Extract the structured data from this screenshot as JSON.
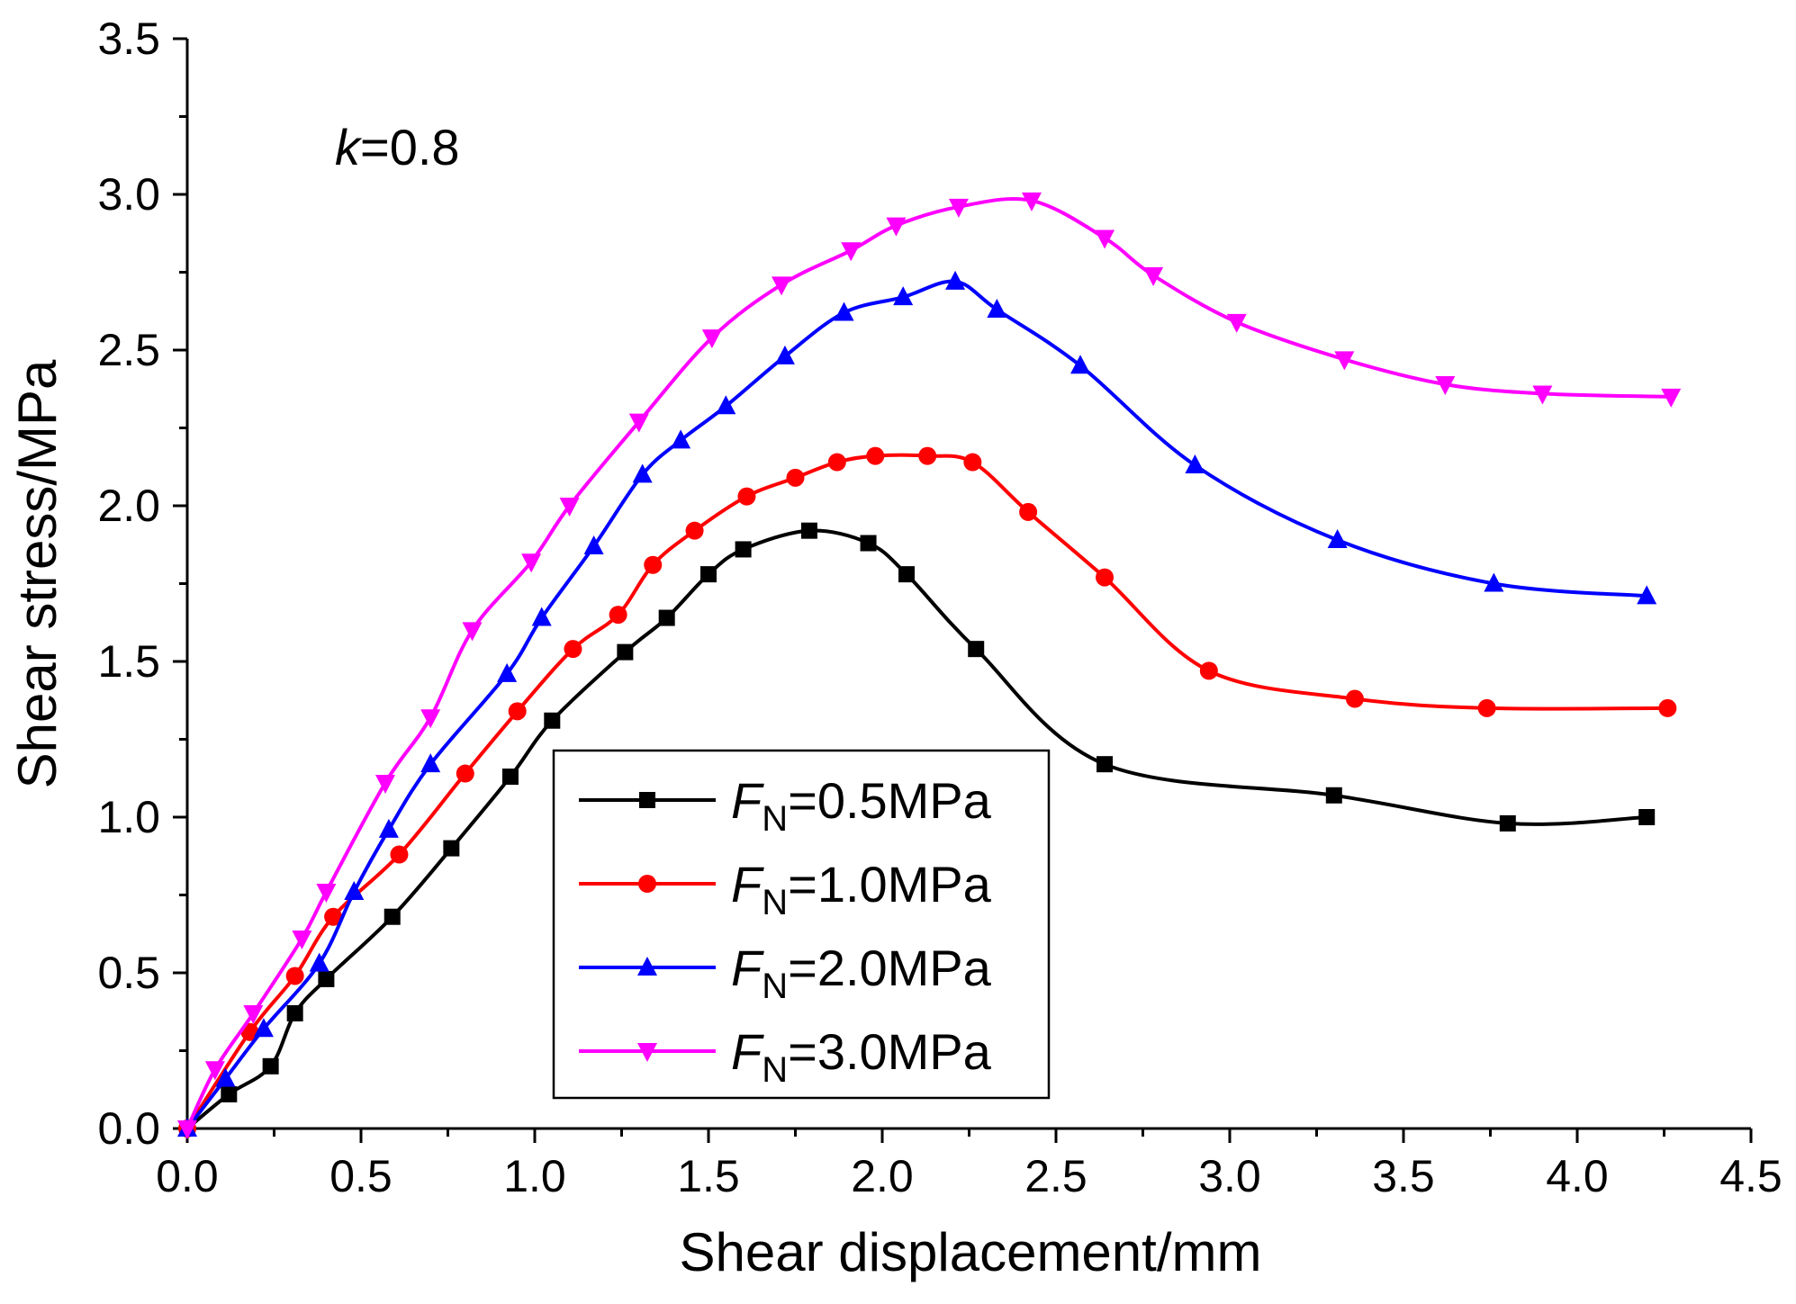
{
  "chart_data": {
    "type": "line",
    "title": "",
    "xlabel": "Shear displacement/mm",
    "ylabel": "Shear stress/MPa",
    "xlim": [
      0,
      4.5
    ],
    "ylim": [
      0,
      3.5
    ],
    "xticks": [
      "0.0",
      "0.5",
      "1.0",
      "1.5",
      "2.0",
      "2.5",
      "3.0",
      "3.5",
      "4.0",
      "4.5"
    ],
    "yticks": [
      "0.0",
      "0.5",
      "1.0",
      "1.5",
      "2.0",
      "2.5",
      "3.0",
      "3.5"
    ],
    "annotation": {
      "var": "k",
      "text": "=0.8"
    },
    "legend_position": "bottom-center",
    "series": [
      {
        "name": "F_N=0.5MPa",
        "label_var": "F",
        "label_sub": "N",
        "label_rest": "=0.5MPa",
        "color": "#000000",
        "marker": "square",
        "x": [
          0.0,
          0.12,
          0.24,
          0.31,
          0.4,
          0.59,
          0.76,
          0.93,
          1.05,
          1.26,
          1.38,
          1.5,
          1.6,
          1.79,
          1.96,
          2.07,
          2.27,
          2.64,
          3.3,
          3.8,
          4.2
        ],
        "y": [
          0.0,
          0.11,
          0.2,
          0.37,
          0.48,
          0.68,
          0.9,
          1.13,
          1.31,
          1.53,
          1.64,
          1.78,
          1.86,
          1.92,
          1.88,
          1.78,
          1.54,
          1.17,
          1.07,
          0.98,
          1.0
        ]
      },
      {
        "name": "F_N=1.0MPa",
        "label_var": "F",
        "label_sub": "N",
        "label_rest": "=1.0MPa",
        "color": "#ff0000",
        "marker": "circle",
        "x": [
          0.0,
          0.18,
          0.31,
          0.42,
          0.61,
          0.8,
          0.95,
          1.11,
          1.24,
          1.34,
          1.46,
          1.61,
          1.75,
          1.87,
          1.98,
          2.13,
          2.26,
          2.42,
          2.64,
          2.94,
          3.36,
          3.74,
          4.26
        ],
        "y": [
          0.0,
          0.31,
          0.49,
          0.68,
          0.88,
          1.14,
          1.34,
          1.54,
          1.65,
          1.81,
          1.92,
          2.03,
          2.09,
          2.14,
          2.16,
          2.16,
          2.14,
          1.98,
          1.77,
          1.47,
          1.38,
          1.35,
          1.35
        ]
      },
      {
        "name": "F_N=2.0MPa",
        "label_var": "F",
        "label_sub": "N",
        "label_rest": "=2.0MPa",
        "color": "#0000ff",
        "marker": "triangle-up",
        "x": [
          0.0,
          0.11,
          0.22,
          0.38,
          0.48,
          0.58,
          0.7,
          0.92,
          1.02,
          1.17,
          1.31,
          1.42,
          1.55,
          1.72,
          1.89,
          2.06,
          2.21,
          2.33,
          2.57,
          2.9,
          3.31,
          3.76,
          4.2
        ],
        "y": [
          0.0,
          0.16,
          0.32,
          0.53,
          0.76,
          0.96,
          1.17,
          1.46,
          1.64,
          1.87,
          2.1,
          2.21,
          2.32,
          2.48,
          2.62,
          2.67,
          2.72,
          2.63,
          2.45,
          2.13,
          1.89,
          1.75,
          1.71
        ]
      },
      {
        "name": "F_N=3.0MPa",
        "label_var": "F",
        "label_sub": "N",
        "label_rest": "=3.0MPa",
        "color": "#ff00ff",
        "marker": "triangle-down",
        "x": [
          0.0,
          0.08,
          0.19,
          0.33,
          0.4,
          0.57,
          0.7,
          0.82,
          0.99,
          1.1,
          1.3,
          1.51,
          1.71,
          1.91,
          2.04,
          2.22,
          2.43,
          2.64,
          2.78,
          3.02,
          3.33,
          3.62,
          3.9,
          4.27
        ],
        "y": [
          0.0,
          0.19,
          0.37,
          0.61,
          0.76,
          1.11,
          1.32,
          1.6,
          1.82,
          2.0,
          2.27,
          2.54,
          2.71,
          2.82,
          2.9,
          2.96,
          2.98,
          2.86,
          2.74,
          2.59,
          2.47,
          2.39,
          2.36,
          2.35
        ]
      }
    ]
  }
}
